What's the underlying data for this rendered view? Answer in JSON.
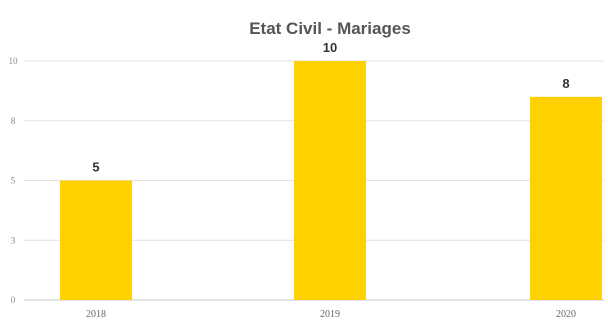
{
  "chart_data": {
    "type": "bar",
    "title": "Etat Civil - Mariages",
    "categories": [
      "2018",
      "2019",
      "2020"
    ],
    "values": [
      5,
      10,
      8.5
    ],
    "data_labels": [
      "5",
      "10",
      "8"
    ],
    "y_ticks": [
      {
        "value": 0,
        "label": "0"
      },
      {
        "value": 2.5,
        "label": "3"
      },
      {
        "value": 5,
        "label": "5"
      },
      {
        "value": 7.5,
        "label": "8"
      },
      {
        "value": 10,
        "label": "10"
      }
    ],
    "ylim": [
      0,
      10
    ],
    "grid": true,
    "legend": "none",
    "bar_color": "#FFD100"
  }
}
